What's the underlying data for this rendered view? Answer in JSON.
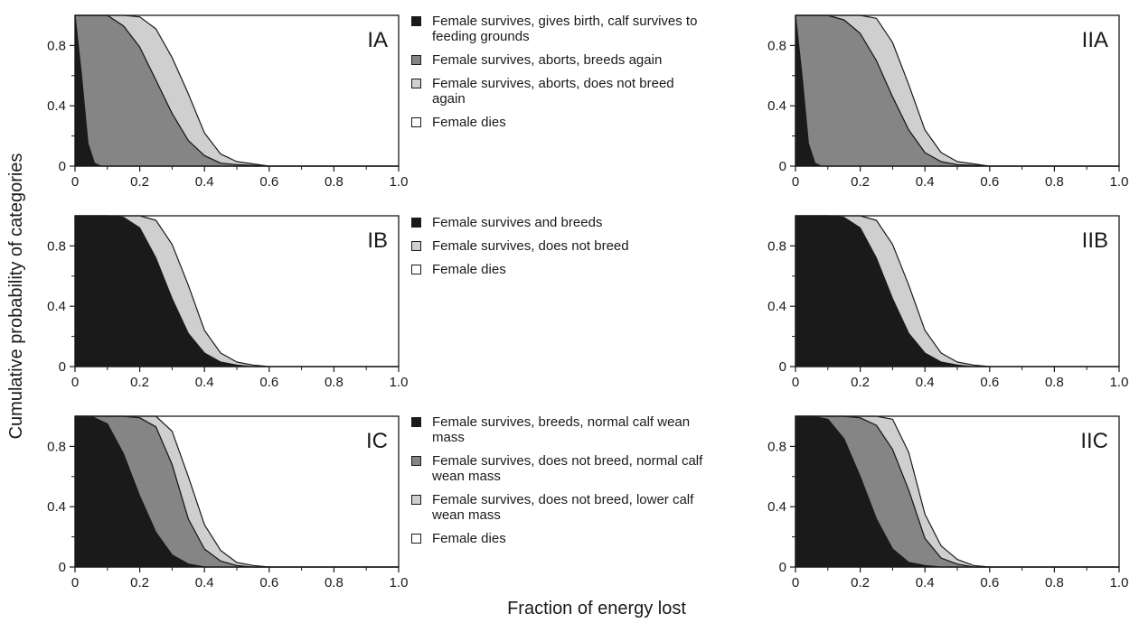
{
  "figure": {
    "ylabel": "Cumulative probability of categories",
    "xlabel": "Fraction of energy lost"
  },
  "legends": [
    {
      "items": [
        {
          "label": "Female survives, gives birth, calf survives to feeding grounds",
          "color": "#1a1a1a"
        },
        {
          "label": "Female survives, aborts, breeds again",
          "color": "#858585"
        },
        {
          "label": "Female survives, aborts, does not breed again",
          "color": "#cfcfcf"
        },
        {
          "label": "Female dies",
          "color": "#ffffff"
        }
      ]
    },
    {
      "items": [
        {
          "label": "Female survives and breeds",
          "color": "#1a1a1a"
        },
        {
          "label": "Female survives, does not breed",
          "color": "#cfcfcf"
        },
        {
          "label": "Female dies",
          "color": "#ffffff"
        }
      ]
    },
    {
      "items": [
        {
          "label": "Female survives, breeds, normal calf wean mass",
          "color": "#1a1a1a"
        },
        {
          "label": "Female survives, does not breed, normal calf wean mass",
          "color": "#858585"
        },
        {
          "label": "Female survives, does not breed, lower calf wean mass",
          "color": "#cfcfcf"
        },
        {
          "label": "Female dies",
          "color": "#ffffff"
        }
      ]
    }
  ],
  "chart_data": [
    {
      "type": "area",
      "panel_label": "IA",
      "x": [
        0,
        0.02,
        0.04,
        0.06,
        0.08,
        0.1,
        0.15,
        0.2,
        0.25,
        0.3,
        0.35,
        0.4,
        0.45,
        0.5,
        0.6,
        0.8,
        1.0
      ],
      "series": [
        {
          "name": "Female survives, gives birth, calf survives to feeding grounds",
          "color": "#1a1a1a",
          "values": [
            1.0,
            0.6,
            0.15,
            0.02,
            0.0,
            0.0,
            0.0,
            0.0,
            0.0,
            0.0,
            0.0,
            0.0,
            0.0,
            0.0,
            0.0,
            0.0,
            0.0
          ]
        },
        {
          "name": "Female survives, aborts, breeds again",
          "color": "#858585",
          "values": [
            0.0,
            0.4,
            0.85,
            0.98,
            1.0,
            1.0,
            0.93,
            0.79,
            0.57,
            0.35,
            0.17,
            0.07,
            0.02,
            0.01,
            0.0,
            0.0,
            0.0
          ]
        },
        {
          "name": "Female survives, aborts, does not breed again",
          "color": "#cfcfcf",
          "values": [
            0.0,
            0.0,
            0.0,
            0.0,
            0.0,
            0.0,
            0.07,
            0.2,
            0.34,
            0.37,
            0.31,
            0.15,
            0.06,
            0.02,
            0.0,
            0.0,
            0.0
          ]
        }
      ],
      "xlim": [
        0,
        1.0
      ],
      "ylim": [
        0,
        1.0
      ],
      "xticks": [
        "0",
        "0.2",
        "0.4",
        "0.6",
        "0.8",
        "1.0"
      ],
      "yticks": [
        "0",
        "0.4",
        "0.8"
      ]
    },
    {
      "type": "area",
      "panel_label": "IB",
      "x": [
        0,
        0.05,
        0.1,
        0.15,
        0.2,
        0.25,
        0.3,
        0.35,
        0.4,
        0.45,
        0.5,
        0.55,
        0.6,
        0.8,
        1.0
      ],
      "series": [
        {
          "name": "Female survives and breeds",
          "color": "#1a1a1a",
          "values": [
            1.0,
            1.0,
            1.0,
            0.99,
            0.92,
            0.72,
            0.45,
            0.22,
            0.09,
            0.03,
            0.01,
            0.0,
            0.0,
            0.0,
            0.0
          ]
        },
        {
          "name": "Female survives, does not breed",
          "color": "#cfcfcf",
          "values": [
            0.0,
            0.0,
            0.0,
            0.01,
            0.08,
            0.25,
            0.36,
            0.32,
            0.15,
            0.06,
            0.02,
            0.01,
            0.0,
            0.0,
            0.0
          ]
        }
      ],
      "xlim": [
        0,
        1.0
      ],
      "ylim": [
        0,
        1.0
      ],
      "xticks": [
        "0",
        "0.2",
        "0.4",
        "0.6",
        "0.8",
        "1.0"
      ],
      "yticks": [
        "0",
        "0.4",
        "0.8"
      ]
    },
    {
      "type": "area",
      "panel_label": "IC",
      "x": [
        0,
        0.05,
        0.1,
        0.15,
        0.2,
        0.25,
        0.3,
        0.35,
        0.4,
        0.45,
        0.5,
        0.55,
        0.6,
        0.8,
        1.0
      ],
      "series": [
        {
          "name": "Female survives, breeds, normal calf wean mass",
          "color": "#1a1a1a",
          "values": [
            1.0,
            1.0,
            0.95,
            0.75,
            0.47,
            0.23,
            0.08,
            0.02,
            0.0,
            0.0,
            0.0,
            0.0,
            0.0,
            0.0,
            0.0
          ]
        },
        {
          "name": "Female survives, does not breed, normal calf wean mass",
          "color": "#858585",
          "values": [
            0.0,
            0.0,
            0.05,
            0.25,
            0.52,
            0.7,
            0.6,
            0.3,
            0.12,
            0.04,
            0.01,
            0.0,
            0.0,
            0.0,
            0.0
          ]
        },
        {
          "name": "Female survives, does not breed, lower calf wean mass",
          "color": "#cfcfcf",
          "values": [
            0.0,
            0.0,
            0.0,
            0.0,
            0.01,
            0.07,
            0.22,
            0.28,
            0.16,
            0.07,
            0.02,
            0.01,
            0.0,
            0.0,
            0.0
          ]
        }
      ],
      "xlim": [
        0,
        1.0
      ],
      "ylim": [
        0,
        1.0
      ],
      "xticks": [
        "0",
        "0.2",
        "0.4",
        "0.6",
        "0.8",
        "1.0"
      ],
      "yticks": [
        "0",
        "0.4",
        "0.8"
      ]
    },
    {
      "type": "area",
      "panel_label": "IIA",
      "x": [
        0,
        0.02,
        0.04,
        0.06,
        0.08,
        0.1,
        0.15,
        0.2,
        0.25,
        0.3,
        0.35,
        0.4,
        0.45,
        0.5,
        0.6,
        0.8,
        1.0
      ],
      "series": [
        {
          "name": "Female survives, gives birth, calf survives to feeding grounds",
          "color": "#1a1a1a",
          "values": [
            1.0,
            0.6,
            0.15,
            0.02,
            0.0,
            0.0,
            0.0,
            0.0,
            0.0,
            0.0,
            0.0,
            0.0,
            0.0,
            0.0,
            0.0,
            0.0,
            0.0
          ]
        },
        {
          "name": "Female survives, aborts, breeds again",
          "color": "#858585",
          "values": [
            0.0,
            0.4,
            0.85,
            0.98,
            1.0,
            1.0,
            0.97,
            0.88,
            0.7,
            0.46,
            0.24,
            0.09,
            0.03,
            0.01,
            0.0,
            0.0,
            0.0
          ]
        },
        {
          "name": "Female survives, aborts, does not breed again",
          "color": "#cfcfcf",
          "values": [
            0.0,
            0.0,
            0.0,
            0.0,
            0.0,
            0.0,
            0.03,
            0.12,
            0.28,
            0.36,
            0.3,
            0.15,
            0.06,
            0.02,
            0.0,
            0.0,
            0.0
          ]
        }
      ],
      "xlim": [
        0,
        1.0
      ],
      "ylim": [
        0,
        1.0
      ],
      "xticks": [
        "0",
        "0.2",
        "0.4",
        "0.6",
        "0.8",
        "1.0"
      ],
      "yticks": [
        "0",
        "0.4",
        "0.8"
      ]
    },
    {
      "type": "area",
      "panel_label": "IIB",
      "x": [
        0,
        0.05,
        0.1,
        0.15,
        0.2,
        0.25,
        0.3,
        0.35,
        0.4,
        0.45,
        0.5,
        0.55,
        0.6,
        0.8,
        1.0
      ],
      "series": [
        {
          "name": "Female survives and breeds",
          "color": "#1a1a1a",
          "values": [
            1.0,
            1.0,
            1.0,
            0.99,
            0.92,
            0.72,
            0.45,
            0.22,
            0.09,
            0.03,
            0.01,
            0.0,
            0.0,
            0.0,
            0.0
          ]
        },
        {
          "name": "Female survives, does not breed",
          "color": "#cfcfcf",
          "values": [
            0.0,
            0.0,
            0.0,
            0.01,
            0.08,
            0.25,
            0.36,
            0.32,
            0.15,
            0.06,
            0.02,
            0.01,
            0.0,
            0.0,
            0.0
          ]
        }
      ],
      "xlim": [
        0,
        1.0
      ],
      "ylim": [
        0,
        1.0
      ],
      "xticks": [
        "0",
        "0.2",
        "0.4",
        "0.6",
        "0.8",
        "1.0"
      ],
      "yticks": [
        "0",
        "0.4",
        "0.8"
      ]
    },
    {
      "type": "area",
      "panel_label": "IIC",
      "x": [
        0,
        0.05,
        0.1,
        0.15,
        0.2,
        0.25,
        0.3,
        0.35,
        0.4,
        0.45,
        0.5,
        0.55,
        0.6,
        0.8,
        1.0
      ],
      "series": [
        {
          "name": "Female survives, breeds, normal calf wean mass",
          "color": "#1a1a1a",
          "values": [
            1.0,
            1.0,
            0.98,
            0.85,
            0.6,
            0.32,
            0.12,
            0.03,
            0.01,
            0.0,
            0.0,
            0.0,
            0.0,
            0.0,
            0.0
          ]
        },
        {
          "name": "Female survives, does not breed, normal calf wean mass",
          "color": "#858585",
          "values": [
            0.0,
            0.0,
            0.02,
            0.15,
            0.39,
            0.62,
            0.66,
            0.48,
            0.18,
            0.06,
            0.02,
            0.0,
            0.0,
            0.0,
            0.0
          ]
        },
        {
          "name": "Female survives, does not breed, lower calf wean mass",
          "color": "#cfcfcf",
          "values": [
            0.0,
            0.0,
            0.0,
            0.0,
            0.01,
            0.06,
            0.2,
            0.25,
            0.16,
            0.08,
            0.03,
            0.01,
            0.0,
            0.0,
            0.0
          ]
        }
      ],
      "xlim": [
        0,
        1.0
      ],
      "ylim": [
        0,
        1.0
      ],
      "xticks": [
        "0",
        "0.2",
        "0.4",
        "0.6",
        "0.8",
        "1.0"
      ],
      "yticks": [
        "0",
        "0.4",
        "0.8"
      ]
    }
  ]
}
